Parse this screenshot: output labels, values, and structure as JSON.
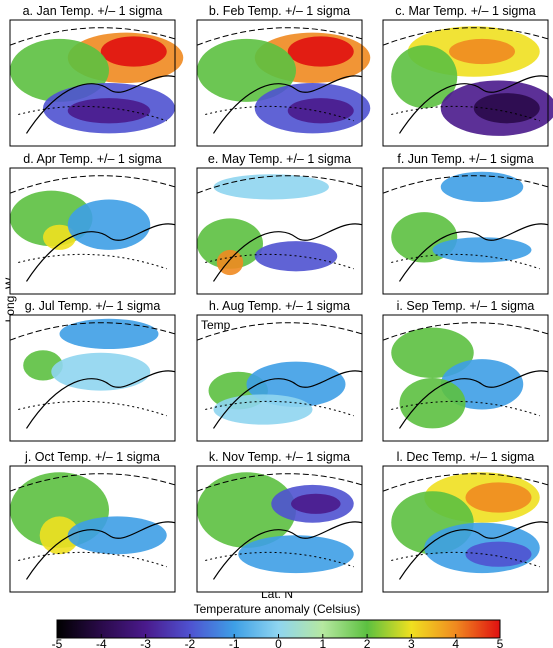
{
  "figure": {
    "panels": [
      {
        "title": "a.  Jan  Temp.  +/–  1 sigma"
      },
      {
        "title": "b.  Feb  Temp.  +/–  1 sigma"
      },
      {
        "title": "c.  Mar  Temp.  +/–  1 sigma"
      },
      {
        "title": "d.  Apr  Temp.  +/–  1 sigma"
      },
      {
        "title": "e.  May  Temp.  +/–  1 sigma"
      },
      {
        "title": "f.  Jun  Temp.  +/–  1 sigma"
      },
      {
        "title": "g.  Jul  Temp.  +/–  1 sigma"
      },
      {
        "title": "h.  Aug  Temp.  +/–  1 sigma",
        "annotation": "Temp"
      },
      {
        "title": "i.  Sep  Temp.  +/–  1 sigma"
      },
      {
        "title": "j.  Oct  Temp.  +/–  1 sigma"
      },
      {
        "title": "k.  Nov  Temp.  +/–  1 sigma"
      },
      {
        "title": "l.  Dec  Temp.  +/–  1 sigma"
      }
    ],
    "y_label": "Long. W",
    "x_label": "Lat. N",
    "colorbar": {
      "title": "Temperature anomaly (Celsius)",
      "lim": [
        -5,
        5
      ],
      "ticks": [
        -5,
        -4,
        -3,
        -2,
        -1,
        0,
        1,
        2,
        3,
        4,
        5
      ],
      "colors": [
        "#000000",
        "#2a0a4a",
        "#4a1a8c",
        "#4f52d0",
        "#3e9fe6",
        "#8fd5f0",
        "#b6e8a0",
        "#5cc040",
        "#f0e020",
        "#f08a20",
        "#e01010"
      ]
    }
  }
}
